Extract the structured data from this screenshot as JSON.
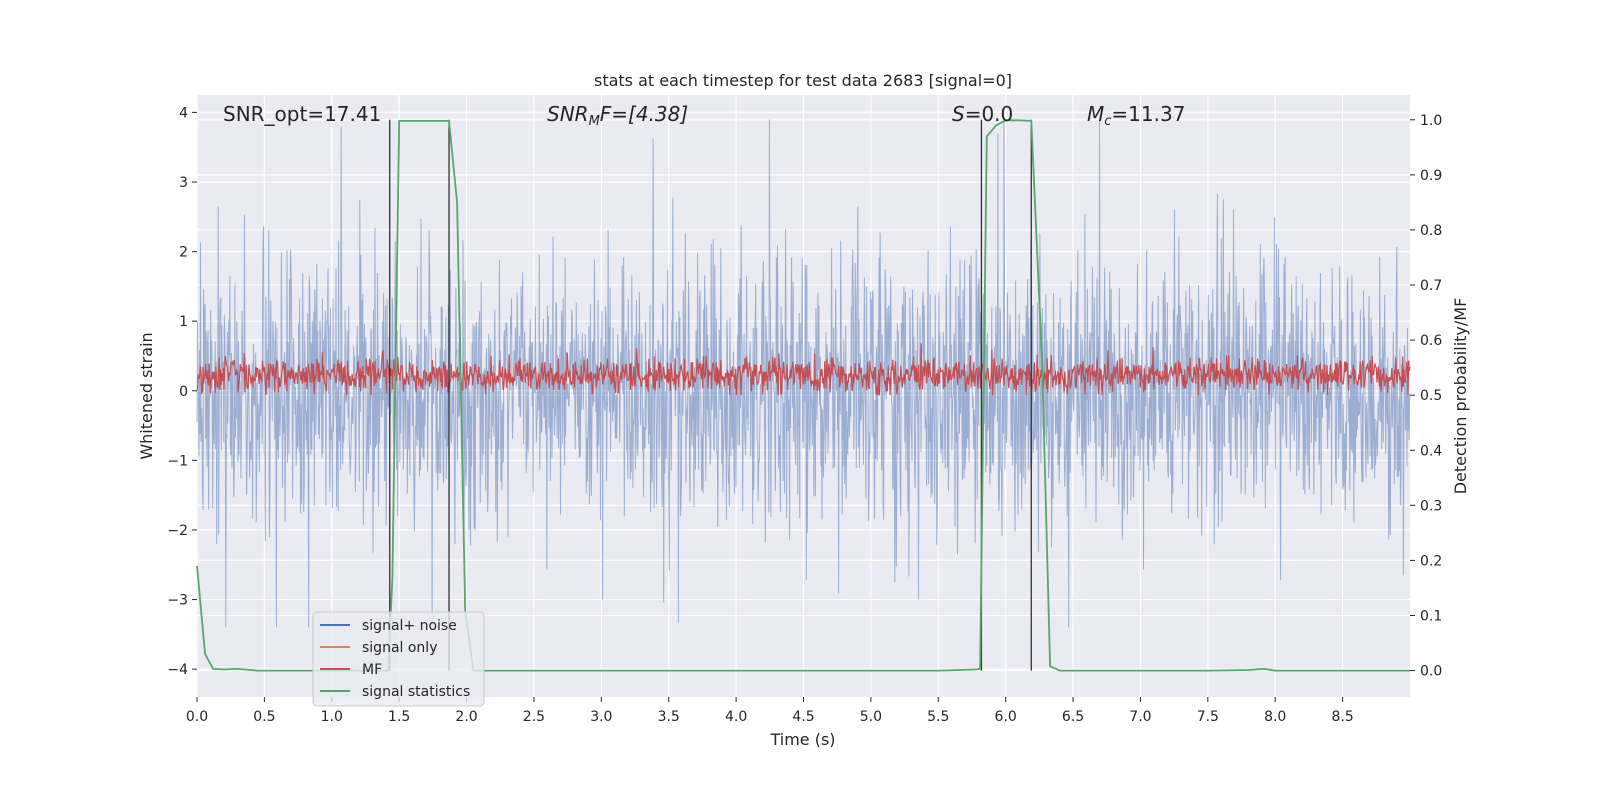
{
  "chart_data": {
    "type": "line",
    "title": "stats at each timestep for test data 2683 [signal=0]",
    "xlabel": "Time (s)",
    "ylabel_left": "Whitened strain",
    "ylabel_right": "Detection probability/MF",
    "xlim": [
      0.0,
      9.0
    ],
    "ylim_left": [
      -4.4,
      4.25
    ],
    "ylim_right": [
      -0.048,
      1.045
    ],
    "x_ticks": [
      "0.0",
      "0.5",
      "1.0",
      "1.5",
      "2.0",
      "2.5",
      "3.0",
      "3.5",
      "4.0",
      "4.5",
      "5.0",
      "5.5",
      "6.0",
      "6.5",
      "7.0",
      "7.5",
      "8.0",
      "8.5"
    ],
    "y_ticks_left": [
      "4",
      "3",
      "2",
      "1",
      "0",
      "−1",
      "−2",
      "−3",
      "−4"
    ],
    "y_ticks_right": [
      "1.0",
      "0.9",
      "0.8",
      "0.7",
      "0.6",
      "0.5",
      "0.4",
      "0.3",
      "0.2",
      "0.1",
      "0.0"
    ],
    "grid": true,
    "legend_position": "bottom-left",
    "annotations": {
      "snr_opt": "SNR_opt=17.41",
      "snr_mf_main": "SNR",
      "snr_mf_sub": "M",
      "snr_mf_rest": "F=[4.38]",
      "s_main": "S",
      "s_rest": "=0.0",
      "mc_main": "M",
      "mc_sub": "c",
      "mc_rest": "=11.37"
    },
    "series": [
      {
        "name": "signal+ noise",
        "color": "#4c72b0",
        "axis": "left",
        "description_range": [
          -3.4,
          3.9
        ]
      },
      {
        "name": "signal only",
        "color": "#dd8452",
        "axis": "left",
        "values": []
      },
      {
        "name": "MF",
        "color": "#c44e52",
        "axis": "right",
        "description_range": [
          0.5,
          0.6
        ]
      },
      {
        "name": "signal statistics",
        "color": "#55a868",
        "axis": "right",
        "x": [
          0.0,
          0.06,
          0.12,
          0.2,
          0.3,
          0.45,
          0.7,
          1.0,
          1.3,
          1.42,
          1.45,
          1.5,
          1.55,
          1.8,
          1.87,
          1.93,
          1.99,
          2.05,
          2.5,
          3.0,
          4.0,
          5.0,
          5.5,
          5.78,
          5.81,
          5.86,
          5.93,
          6.0,
          6.1,
          6.19,
          6.27,
          6.33,
          6.4,
          7.0,
          7.5,
          7.8,
          7.92,
          8.0,
          8.5,
          9.0
        ],
        "y": [
          0.19,
          0.03,
          0.003,
          0.002,
          0.003,
          0.0,
          0.0,
          0.0,
          0.0,
          0.0,
          0.17,
          0.998,
          0.998,
          0.998,
          0.998,
          0.85,
          0.11,
          0.0,
          0.0,
          0.0,
          0.0,
          0.0,
          0.0,
          0.002,
          0.003,
          0.97,
          0.99,
          0.999,
          0.999,
          0.998,
          0.56,
          0.008,
          0.0,
          0.0,
          0.0,
          0.001,
          0.003,
          0.0,
          0.0,
          0.0
        ]
      }
    ],
    "vlines_x": [
      1.43,
      1.87,
      5.82,
      6.19
    ]
  },
  "legend": {
    "items": [
      {
        "label": "signal+ noise",
        "color": "#4c72b0"
      },
      {
        "label": "signal only",
        "color": "#dd8452"
      },
      {
        "label": "MF",
        "color": "#c44e52"
      },
      {
        "label": "signal statistics",
        "color": "#55a868"
      }
    ]
  },
  "colors": {
    "plot_bg": "#eaeaf2",
    "grid": "#ffffff",
    "noise": "#4c72b0",
    "mf": "#c44e52",
    "stats": "#55a868",
    "vline": "#333333"
  }
}
